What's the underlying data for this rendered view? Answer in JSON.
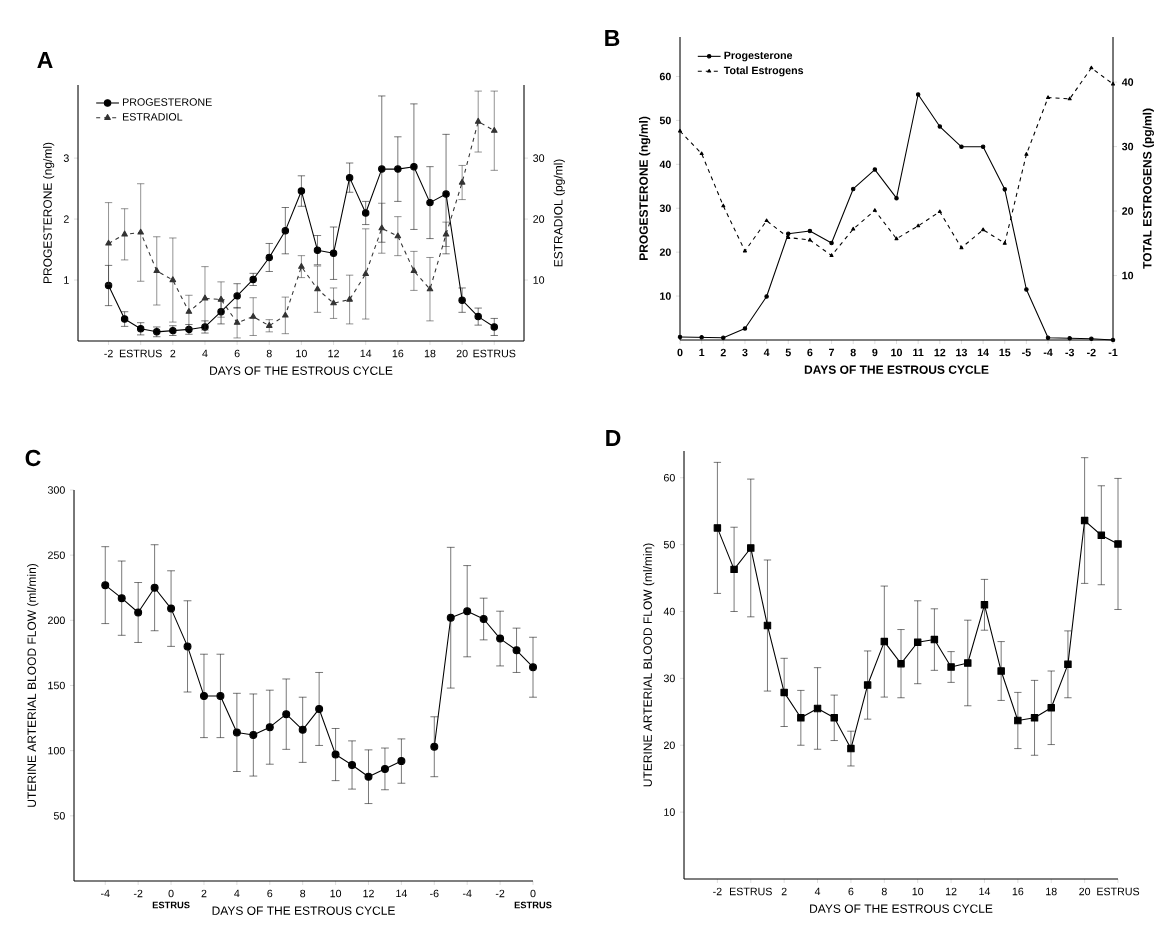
{
  "chart_data": [
    {
      "type": "line",
      "title": "A",
      "xlabel": "DAYS OF THE ESTROUS CYCLE",
      "ylabel": "PROGESTERONE (ng/ml)",
      "y2label": "ESTRADIOL (pg/ml)",
      "categories": [
        "-2",
        null,
        "ESTRUS",
        null,
        "2",
        null,
        "4",
        null,
        "6",
        null,
        "8",
        null,
        "10",
        null,
        "12",
        null,
        "14",
        null,
        "16",
        null,
        "18",
        null,
        "20",
        null,
        "ESTRUS"
      ],
      "series": [
        {
          "name": "PROGESTERONE",
          "color": "#000000",
          "marker": "circle",
          "line_style": "solid",
          "values": [
            0.91,
            0.36,
            0.2,
            0.15,
            0.17,
            0.19,
            0.23,
            0.48,
            0.74,
            1.01,
            1.37,
            1.81,
            2.46,
            1.49,
            1.44,
            2.68,
            2.1,
            2.82,
            2.82,
            2.86,
            2.27,
            2.41,
            0.67,
            0.4,
            0.23
          ],
          "errors": [
            0.33,
            0.12,
            0.1,
            0.08,
            0.08,
            0.08,
            0.1,
            0.2,
            0.2,
            0.1,
            0.23,
            0.38,
            0.25,
            0.24,
            0.43,
            0.24,
            0.19,
            1.2,
            0.53,
            1.03,
            0.59,
            0.98,
            0.2,
            0.14,
            0.14
          ]
        },
        {
          "name": "ESTRADIOL",
          "color": "#333333",
          "marker": "triangle",
          "line_style": "dashed",
          "axis": "y2",
          "values": [
            16,
            17.5,
            17.8,
            11.5,
            10,
            4.8,
            7,
            6.8,
            3,
            4,
            2.5,
            4.2,
            12.2,
            8.5,
            6.2,
            6.8,
            11,
            18.5,
            17.2,
            11.5,
            8.5,
            17.5,
            26,
            36,
            34.5
          ],
          "errors": [
            6.7,
            4.2,
            8,
            5.6,
            6.9,
            2.7,
            5.2,
            2.9,
            2.5,
            3.1,
            1,
            3,
            1.8,
            3.8,
            2.5,
            4,
            7.4,
            4.1,
            3.2,
            3.2,
            5.2,
            2,
            2.8,
            5,
            6.5
          ]
        }
      ],
      "ylim": [
        0,
        4.2
      ],
      "yticks": [
        1,
        2,
        3
      ],
      "y2lim": [
        0,
        42
      ],
      "y2ticks": [
        10,
        20,
        30
      ],
      "legend": "top left"
    },
    {
      "type": "line",
      "title": "B",
      "xlabel": "DAYS OF THE ESTROUS CYCLE",
      "ylabel": "PROGESTERONE (ng/ml)",
      "y2label": "TOTAL ESTROGENS (pg/ml)",
      "categories": [
        "0",
        "1",
        "2",
        "3",
        "4",
        "5",
        "6",
        "7",
        "8",
        "9",
        "10",
        "11",
        "12",
        "13",
        "14",
        "15",
        "-5",
        "-4",
        "-3",
        "-2",
        "-1"
      ],
      "series": [
        {
          "name": "Progesterone",
          "color": "#000000",
          "marker": "circle",
          "line_style": "solid",
          "values": [
            0.7,
            0.6,
            0.5,
            2.6,
            9.9,
            24.2,
            24.8,
            22.1,
            34.4,
            38.8,
            32.3,
            55.9,
            48.6,
            44,
            44,
            34.3,
            11.5,
            0.5,
            0.4,
            0.3,
            0
          ]
        },
        {
          "name": "Total Estrogens",
          "color": "#000000",
          "marker": "triangle",
          "line_style": "dashed",
          "axis": "y2",
          "values": [
            32.4,
            28.9,
            20.8,
            13.8,
            18.5,
            15.9,
            15.5,
            13.1,
            17.2,
            20.1,
            15.7,
            17.7,
            19.9,
            14.3,
            17.1,
            15,
            28.8,
            37.6,
            37.4,
            42.2,
            39.7
          ]
        }
      ],
      "ylim": [
        0,
        69
      ],
      "yticks": [
        10,
        20,
        30,
        40,
        50,
        60
      ],
      "y2lim": [
        0,
        47
      ],
      "y2ticks": [
        10,
        20,
        30,
        40
      ],
      "legend": "top left"
    },
    {
      "type": "line",
      "title": "C",
      "xlabel": "DAYS OF THE ESTROUS CYCLE",
      "ylabel": "UTERINE ARTERIAL BLOOD FLOW (ml/min)",
      "categories": [
        "-4",
        null,
        "-2",
        null,
        "0",
        null,
        "2",
        null,
        "4",
        null,
        "6",
        null,
        "8",
        null,
        "10",
        null,
        "12",
        null,
        "14",
        null,
        "-6",
        null,
        "-4",
        null,
        "-2",
        null,
        "0"
      ],
      "series": [
        {
          "color": "#000000",
          "marker": "circle",
          "line_style": "solid",
          "values": [
            227,
            217,
            206,
            225,
            209,
            180,
            142,
            142,
            114,
            112,
            118,
            128,
            116,
            132,
            97,
            89,
            80,
            86,
            92,
            null,
            103,
            202,
            207,
            201,
            186,
            177,
            164
          ],
          "errors": [
            29.5,
            28.5,
            23,
            33,
            29,
            35,
            32,
            32,
            30,
            31.5,
            28.4,
            27,
            25,
            28,
            20,
            18.5,
            20.6,
            16,
            17,
            null,
            23,
            54,
            35,
            16,
            21,
            17,
            23
          ]
        }
      ],
      "ylim": [
        0,
        300
      ],
      "yticks": [
        50,
        100,
        150,
        200,
        250,
        300
      ],
      "annotations": [
        "ESTRUS",
        "ESTRUS"
      ]
    },
    {
      "type": "line",
      "title": "D",
      "xlabel": "DAYS OF THE ESTROUS CYCLE",
      "ylabel": "UTERINE ARTERIAL BLOOD FLOW (ml/min)",
      "categories": [
        "-2",
        null,
        "ESTRUS",
        null,
        "2",
        null,
        "4",
        null,
        "6",
        null,
        "8",
        null,
        "10",
        null,
        "12",
        null,
        "14",
        null,
        "16",
        null,
        "18",
        null,
        "20",
        null,
        "ESTRUS"
      ],
      "series": [
        {
          "color": "#000000",
          "marker": "square",
          "line_style": "solid",
          "values": [
            52.5,
            46.3,
            49.5,
            37.9,
            27.9,
            24.1,
            25.5,
            24.1,
            19.5,
            29,
            35.5,
            32.2,
            35.4,
            35.8,
            31.7,
            32.3,
            41,
            31.1,
            23.7,
            24.1,
            25.6,
            32.1,
            53.6,
            51.4,
            50.1
          ],
          "errors": [
            9.8,
            6.3,
            10.3,
            9.8,
            5.1,
            4.1,
            6.1,
            3.4,
            2.6,
            5.1,
            8.3,
            5.1,
            6.2,
            4.6,
            2.3,
            6.4,
            3.8,
            4.4,
            4.2,
            5.6,
            5.5,
            5,
            9.4,
            7.4,
            9.8
          ]
        }
      ],
      "ylim": [
        0,
        64
      ],
      "yticks": [
        10,
        20,
        30,
        40,
        50,
        60
      ]
    }
  ]
}
